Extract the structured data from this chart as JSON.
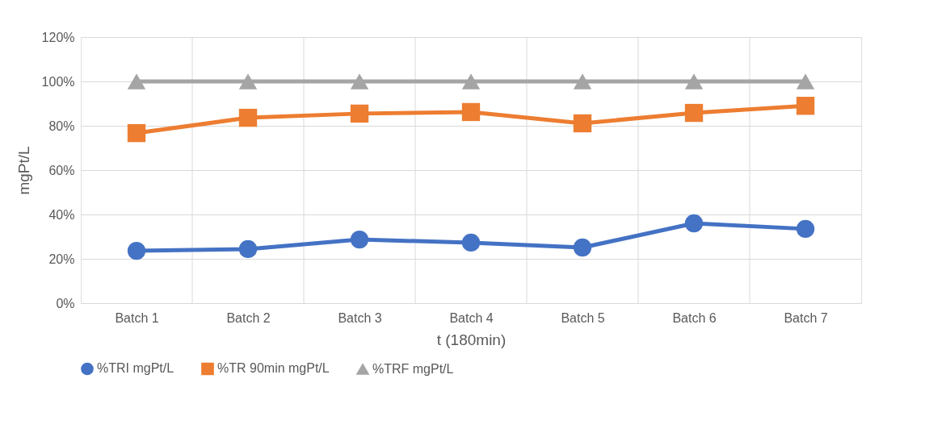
{
  "chart_data": {
    "type": "line",
    "xlabel": "t (180min)",
    "ylabel": "mgPt/L",
    "categories": [
      "Batch 1",
      "Batch 2",
      "Batch 3",
      "Batch 4",
      "Batch 5",
      "Batch 6",
      "Batch 7"
    ],
    "series": [
      {
        "name": "%TRI mgPt/L",
        "color": "#4472c4",
        "marker": "circle",
        "values": [
          23.6,
          24.4,
          28.7,
          27.3,
          25.1,
          36,
          33.5
        ]
      },
      {
        "name": "%TR 90min mgPt/L",
        "color": "#ed7d31",
        "marker": "square",
        "values": [
          76.7,
          83.6,
          85.5,
          86.2,
          81.1,
          85.8,
          89
        ]
      },
      {
        "name": "%TRF mgPt/L",
        "color": "#a5a5a5",
        "marker": "triangle",
        "values": [
          100,
          100,
          100,
          100,
          100,
          100,
          100
        ]
      }
    ],
    "ylim": [
      0,
      120
    ],
    "yticks": [
      {
        "value": 0,
        "label": "0%"
      },
      {
        "value": 20,
        "label": "20%"
      },
      {
        "value": 40,
        "label": "40%"
      },
      {
        "value": 60,
        "label": "60%"
      },
      {
        "value": 80,
        "label": "80%"
      },
      {
        "value": 100,
        "label": "100%"
      },
      {
        "value": 120,
        "label": "120%"
      }
    ],
    "grid": true,
    "legend": "bottom",
    "line_style": "solid"
  }
}
